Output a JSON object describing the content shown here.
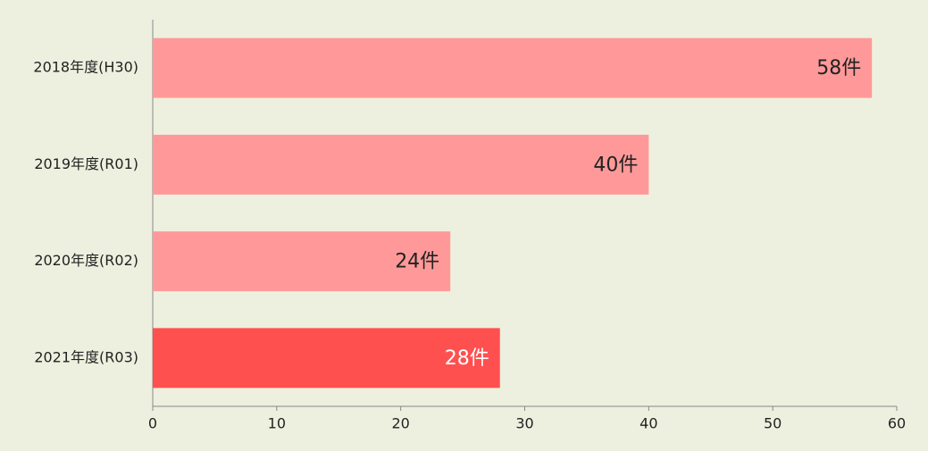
{
  "chart_data": {
    "type": "bar",
    "orientation": "horizontal",
    "categories": [
      "2018年度(H30)",
      "2019年度(R01)",
      "2020年度(R02)",
      "2021年度(R03)"
    ],
    "values": [
      58,
      40,
      24,
      28
    ],
    "value_labels": [
      "58件",
      "40件",
      "24件",
      "28件"
    ],
    "colors": [
      "#ff9999",
      "#ff9999",
      "#ff9999",
      "#ff5050"
    ],
    "value_label_colors": [
      "#222222",
      "#222222",
      "#222222",
      "#ffffff"
    ],
    "xlim": [
      0,
      60
    ],
    "xticks": [
      0,
      10,
      20,
      30,
      40,
      50,
      60
    ]
  }
}
